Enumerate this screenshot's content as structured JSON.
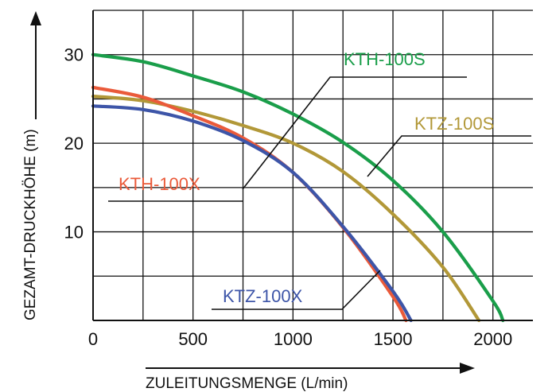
{
  "chart_data": {
    "type": "line",
    "title": "",
    "xlabel": "ZULEITUNGSMENGE (L/min)",
    "ylabel": "GEZAMT-DRUCKHÖHE (m)",
    "xlim": [
      0,
      2200
    ],
    "ylim": [
      0,
      35
    ],
    "x_ticks": [
      "0",
      "500",
      "1000",
      "1500",
      "2000"
    ],
    "y_ticks": [
      "10",
      "20",
      "30"
    ],
    "grid": true,
    "series": [
      {
        "name": "KTH-100S",
        "color": "#1a9e4a",
        "x": [
          0,
          250,
          500,
          750,
          1000,
          1250,
          1500,
          1750,
          2000,
          2050
        ],
        "y": [
          30,
          29.2,
          27.6,
          25.8,
          23.3,
          20.1,
          15.8,
          10,
          2.2,
          0
        ]
      },
      {
        "name": "KTZ-100S",
        "color": "#b29838",
        "x": [
          0,
          250,
          500,
          750,
          1000,
          1250,
          1500,
          1750,
          1930
        ],
        "y": [
          25.3,
          24.8,
          23.6,
          22,
          20,
          16.8,
          12,
          6,
          0
        ]
      },
      {
        "name": "KTH-100X",
        "color": "#ea5a3a",
        "x": [
          0,
          250,
          500,
          750,
          1000,
          1250,
          1500,
          1565
        ],
        "y": [
          26.3,
          25.2,
          23.1,
          20.6,
          16.7,
          10.5,
          2.7,
          0
        ]
      },
      {
        "name": "KTZ-100X",
        "color": "#3d55a8",
        "x": [
          0,
          250,
          500,
          750,
          1000,
          1250,
          1500,
          1590
        ],
        "y": [
          24.2,
          23.8,
          22.5,
          20.3,
          16.7,
          10.6,
          3.3,
          0
        ]
      }
    ]
  }
}
